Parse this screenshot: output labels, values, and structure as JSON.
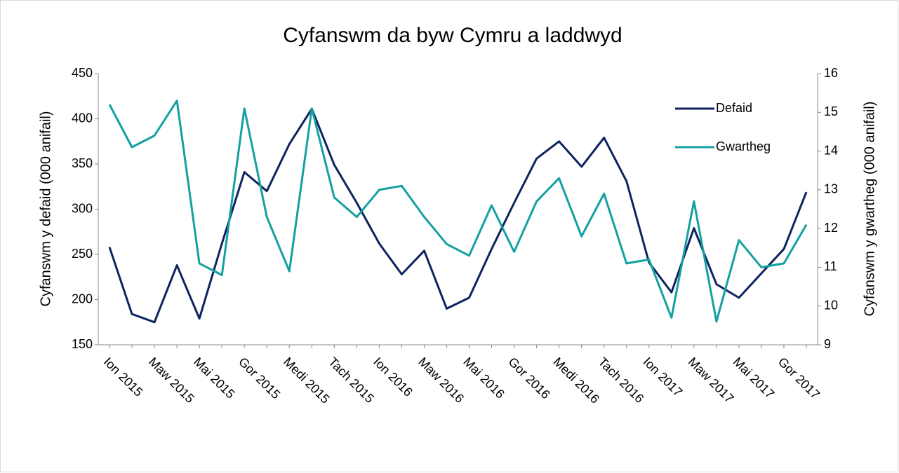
{
  "chart_data": {
    "type": "line",
    "title": "Cyfanswm da byw Cymru a laddwyd",
    "y_label": "Cyfanswm y defaid (000 anifail)",
    "y2_label": "Cyfanswm y gwartheg (000 anifail)",
    "categories": [
      "Ion 2015",
      null,
      "Maw 2015",
      null,
      "Mai 2015",
      null,
      "Gor 2015",
      null,
      "Medi 2015",
      null,
      "Tach 2015",
      null,
      "Ion 2016",
      null,
      "Maw 2016",
      null,
      "Mai 2016",
      null,
      "Gor 2016",
      null,
      "Medi 2016",
      null,
      "Tach 2016",
      null,
      "Ion 2017",
      null,
      "Maw 2017",
      null,
      "Mai 2017",
      null,
      "Gor 2017",
      null
    ],
    "series": [
      {
        "name": "Defaid",
        "color": "#0e2360",
        "values": [
          258,
          184,
          175,
          238,
          179,
          262,
          341,
          320,
          372,
          411,
          349,
          307,
          262,
          228,
          254,
          190,
          202,
          256,
          307,
          356,
          375,
          347,
          379,
          331,
          241,
          208,
          279,
          217,
          202,
          229,
          256,
          319
        ]
      },
      {
        "name": "Gwartheg",
        "color": "#14a0a0",
        "axis": "y2",
        "values": [
          15.2,
          14.1,
          14.4,
          15.3,
          11.1,
          10.8,
          15.1,
          12.3,
          10.9,
          15.1,
          12.8,
          12.3,
          13.0,
          13.1,
          12.3,
          11.6,
          11.3,
          12.6,
          11.4,
          12.7,
          13.3,
          11.8,
          12.9,
          11.1,
          11.2,
          9.7,
          12.7,
          9.6,
          11.7,
          11.0,
          11.1,
          12.1
        ]
      }
    ],
    "ylim": [
      150,
      450
    ],
    "yticks": [
      150,
      200,
      250,
      300,
      350,
      400,
      450
    ],
    "y2lim": [
      9,
      16
    ],
    "y2ticks": [
      9,
      10,
      11,
      12,
      13,
      14,
      15,
      16
    ],
    "grid": false,
    "legend": "top-right"
  }
}
